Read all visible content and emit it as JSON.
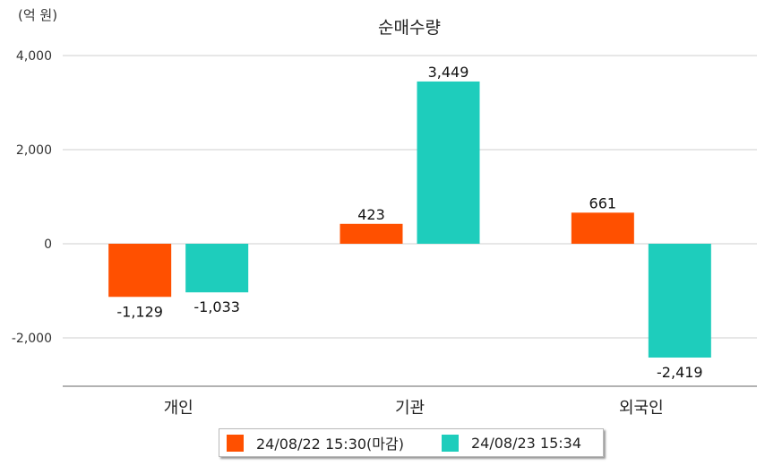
{
  "unit_label": "(억 원)",
  "chart_data": {
    "type": "bar",
    "title": "순매수량",
    "categories": [
      "개인",
      "기관",
      "외국인"
    ],
    "series": [
      {
        "name": "24/08/22 15:30(마감)",
        "color": "#ff5000",
        "values": [
          -1129,
          423,
          661
        ],
        "labels": [
          "-1,129",
          "423",
          "661"
        ]
      },
      {
        "name": "24/08/23 15:34",
        "color": "#1ecdbc",
        "values": [
          -1033,
          3449,
          -2419
        ],
        "labels": [
          "-1,033",
          "3,449",
          "-2,419"
        ]
      }
    ],
    "y_ticks": [
      4000,
      2000,
      0,
      -2000
    ],
    "y_tick_labels": [
      "4,000",
      "2,000",
      "0",
      "-2,000"
    ],
    "ylim": [
      -3000,
      4200
    ],
    "grid": true,
    "legend_position": "bottom"
  }
}
